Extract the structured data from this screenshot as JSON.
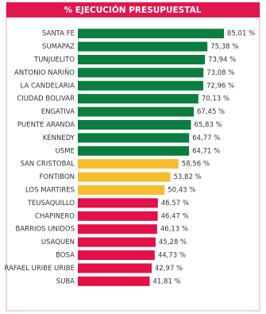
{
  "chart_data": {
    "type": "bar",
    "orientation": "horizontal",
    "title": "% EJECUCIÓN PRESUPUESTAL",
    "categories": [
      "SANTA FE",
      "SUMAPAZ",
      "TUNJUELITO",
      "ANTONIO NARIÑO",
      "LA CANDELARIA",
      "CIUDAD BOLIVAR",
      "ENGATIVA",
      "PUENTE ARANDA",
      "KENNEDY",
      "USME",
      "SAN CRISTOBAL",
      "FONTIBON",
      "LOS MARTIRES",
      "TEUSAQUILLO",
      "CHAPINERO",
      "BARRIOS UNIDOS",
      "USAQUEN",
      "BOSA",
      "RAFAEL URIBE URIBE",
      "SUBA"
    ],
    "values": [
      85.01,
      75.38,
      73.94,
      73.08,
      72.96,
      70.13,
      67.45,
      65.83,
      64.77,
      64.71,
      58.56,
      53.82,
      50.43,
      46.57,
      46.47,
      46.13,
      45.28,
      44.73,
      42.97,
      41.81
    ],
    "value_labels": [
      "85,01 %",
      "75,38 %",
      "73,94 %",
      "73,08 %",
      "72,96 %",
      "70,13 %",
      "67,45 %",
      "65,83 %",
      "64,77 %",
      "64,71 %",
      "58,56 %",
      "53,82 %",
      "50,43 %",
      "46,57 %",
      "46,47 %",
      "46,13 %",
      "45,28 %",
      "44,73 %",
      "42,97 %",
      "41,81 %"
    ],
    "colors": [
      "#0b7d3e",
      "#0b7d3e",
      "#0b7d3e",
      "#0b7d3e",
      "#0b7d3e",
      "#0b7d3e",
      "#0b7d3e",
      "#0b7d3e",
      "#0b7d3e",
      "#0b7d3e",
      "#f7bd2e",
      "#f7bd2e",
      "#f7bd2e",
      "#e3104a",
      "#e3104a",
      "#e3104a",
      "#e3104a",
      "#e3104a",
      "#e3104a",
      "#e3104a"
    ],
    "xlim": [
      0,
      100
    ]
  }
}
